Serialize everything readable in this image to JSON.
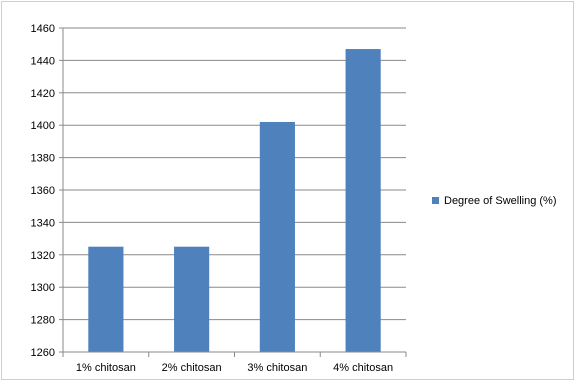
{
  "chart_data": {
    "type": "bar",
    "categories": [
      "1% chitosan",
      "2% chitosan",
      "3% chitosan",
      "4% chitosan"
    ],
    "series": [
      {
        "name": "Degree of Swelling (%)",
        "values": [
          1325,
          1325,
          1402,
          1447
        ],
        "color": "#4f81bd"
      }
    ],
    "ylim": [
      1260,
      1460
    ],
    "yticks": [
      1260,
      1280,
      1300,
      1320,
      1340,
      1360,
      1380,
      1400,
      1420,
      1440,
      1460
    ],
    "grid": true,
    "legend_position": "right"
  }
}
